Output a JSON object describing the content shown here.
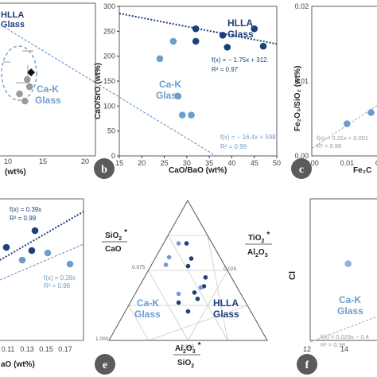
{
  "colors": {
    "hlla": "#1c4079",
    "cak": "#6e9ccd",
    "cak_light": "#8fb3d9",
    "axis": "#333333",
    "badge": "#5b5b5b",
    "black": "#111111"
  },
  "chart_data": [
    {
      "panel": "a",
      "type": "scatter",
      "xlim": [
        0,
        20
      ],
      "xticks": [
        "10",
        "15",
        "20"
      ],
      "xlabel": "(wt%)",
      "labels": {
        "hlla": "HLLA",
        "hlla2": "Glass",
        "cak": "Ca-K",
        "cak2": "Glass"
      },
      "series": [
        {
          "group": "Ca-K",
          "points": [
            [
              7.5,
              3.6
            ],
            [
              12.5,
              3.2
            ],
            [
              12.8,
              2.9
            ],
            [
              11.5,
              2.6
            ],
            [
              12.2,
              2.3
            ]
          ]
        },
        {
          "group": "black",
          "points": [
            [
              13.0,
              3.5
            ]
          ]
        }
      ]
    },
    {
      "panel": "b",
      "type": "scatter",
      "xlabel": "CaO/BaO (wt%)",
      "ylabel": "CaO/SrO (wt%)",
      "xlim": [
        15,
        50
      ],
      "ylim": [
        0,
        300
      ],
      "xticks": [
        "15",
        "20",
        "25",
        "30",
        "35",
        "40",
        "45",
        "50"
      ],
      "yticks": [
        "0",
        "50",
        "100",
        "150",
        "200",
        "250",
        "300"
      ],
      "labels": {
        "hlla": "HLLA",
        "hlla2": "Glass",
        "cak": "Ca-K",
        "cak2": "Glass"
      },
      "series": [
        {
          "group": "HLLA",
          "points": [
            [
              32,
              255
            ],
            [
              32,
              230
            ],
            [
              38,
              242
            ],
            [
              39,
              218
            ],
            [
              45,
              255
            ],
            [
              47,
              220
            ]
          ]
        },
        {
          "group": "Ca-K",
          "points": [
            [
              24,
              195
            ],
            [
              27,
              230
            ],
            [
              28,
              120
            ],
            [
              29,
              82
            ],
            [
              31,
              82
            ]
          ]
        }
      ],
      "trendlines": [
        {
          "group": "HLLA",
          "slope": -1.75,
          "intercept": 312,
          "label": "f(x) = − 1.75x + 312.",
          "r2": "R² = 0.97"
        },
        {
          "group": "Ca-K",
          "slope": -16.4,
          "intercept": 598,
          "label": "f(x) = − 16.4x + 598.",
          "r2": "R² = 0.99"
        }
      ]
    },
    {
      "panel": "c",
      "type": "scatter",
      "xlabel": "Fe₂C",
      "ylabel": "Fe₂O₃/SiO₂ (wt%)",
      "xlim": [
        0,
        0.025
      ],
      "ylim": [
        0,
        0.02
      ],
      "xticks": [
        "0.00",
        "0.01",
        "0.02"
      ],
      "yticks": [
        "0.00",
        "0.01",
        "0.02"
      ],
      "series": [
        {
          "group": "HLLA",
          "points": [
            [
              0.0235,
              0.0102
            ],
            [
              0.0238,
              0.0094
            ],
            [
              0.0236,
              0.0087
            ],
            [
              0.024,
              0.0082
            ]
          ]
        },
        {
          "group": "Ca-K",
          "points": [
            [
              0.01,
              0.0043
            ],
            [
              0.0168,
              0.0058
            ],
            [
              0.0205,
              0.0052
            ],
            [
              0.0236,
              0.0077
            ],
            [
              0.0238,
              0.0048
            ]
          ]
        }
      ],
      "trendlines": [
        {
          "group": "Ca-K",
          "slope": 0.31,
          "intercept": 0.001,
          "label": "f(x) = 0.31x + 0.001",
          "r2": "R² = 0.98"
        }
      ]
    },
    {
      "panel": "d",
      "type": "scatter",
      "xlabel": "aO (wt%)",
      "xticks": [
        "0.11",
        "0.13",
        "0.15",
        "0.17"
      ],
      "series": [
        {
          "group": "HLLA",
          "points": [
            [
              0.102,
              0.5
            ],
            [
              0.145,
              0.8
            ],
            [
              0.143,
              0.63
            ]
          ]
        },
        {
          "group": "Ca-K",
          "points": [
            [
              0.122,
              0.24
            ],
            [
              0.145,
              0.36
            ],
            [
              0.181,
              0.16
            ]
          ]
        }
      ],
      "trendlines": [
        {
          "group": "HLLA",
          "label": "f(x) = 0.39x",
          "r2": "R² = 0.99"
        },
        {
          "group": "Ca-K",
          "label": "f(x) = 0.28x",
          "r2": "R² = 0.98"
        }
      ]
    },
    {
      "panel": "e",
      "type": "ternary",
      "apex_left": {
        "num": "SiO",
        "sub": "2",
        "den": "CaO"
      },
      "apex_right": {
        "num": "TiO",
        "sub": "2",
        "den_main": "Al",
        "den_sub1": "2",
        "den_mid": "O",
        "den_sub2": "3"
      },
      "apex_bottom": {
        "num_main": "Al",
        "num_sub1": "2",
        "num_mid": "O",
        "num_sub2": "3",
        "den": "SiO",
        "den_sub": "2"
      },
      "ticks": [
        "0.975",
        "0.025",
        "1.000",
        "0.025"
      ],
      "labels": {
        "hlla": "HLLA",
        "hlla2": "Glass",
        "cak": "Ca-K",
        "cak2": "Glass"
      },
      "series": [
        {
          "group": "HLLA",
          "points": [
            [
              0.5,
              0.23
            ],
            [
              0.44,
              0.3
            ],
            [
              0.56,
              0.33
            ],
            [
              0.54,
              0.38
            ],
            [
              0.6,
              0.43
            ],
            [
              0.61,
              0.5
            ],
            [
              0.5,
              0.59
            ],
            [
              0.52,
              0.65
            ],
            [
              0.49,
              0.77
            ]
          ]
        },
        {
          "group": "Ca-K",
          "points": [
            [
              0.44,
              0.37
            ],
            [
              0.58,
              0.42
            ],
            [
              0.36,
              0.6
            ],
            [
              0.38,
              0.66
            ],
            [
              0.44,
              0.77
            ]
          ]
        }
      ]
    },
    {
      "panel": "f",
      "type": "scatter",
      "ylabel": "Cl",
      "xticks": [
        "12",
        "14",
        "16"
      ],
      "labels": {
        "cak": "Ca-K",
        "cak2": "Glass"
      },
      "series": [
        {
          "group": "HLLA",
          "points": [
            [
              17.5,
              0.11
            ]
          ]
        },
        {
          "group": "Ca-K",
          "points": [
            [
              14.2,
              0.21
            ],
            [
              17.4,
              0.09
            ],
            [
              17.6,
              0.08
            ],
            [
              18.0,
              0.08
            ]
          ]
        }
      ],
      "trendlines": [
        {
          "group": "Ca-K",
          "label": "f(x) = 0.029x − 0.4",
          "r2": "R² = 0.98"
        }
      ]
    }
  ],
  "badges": [
    "b",
    "c",
    "e",
    "f"
  ],
  "star": "*"
}
